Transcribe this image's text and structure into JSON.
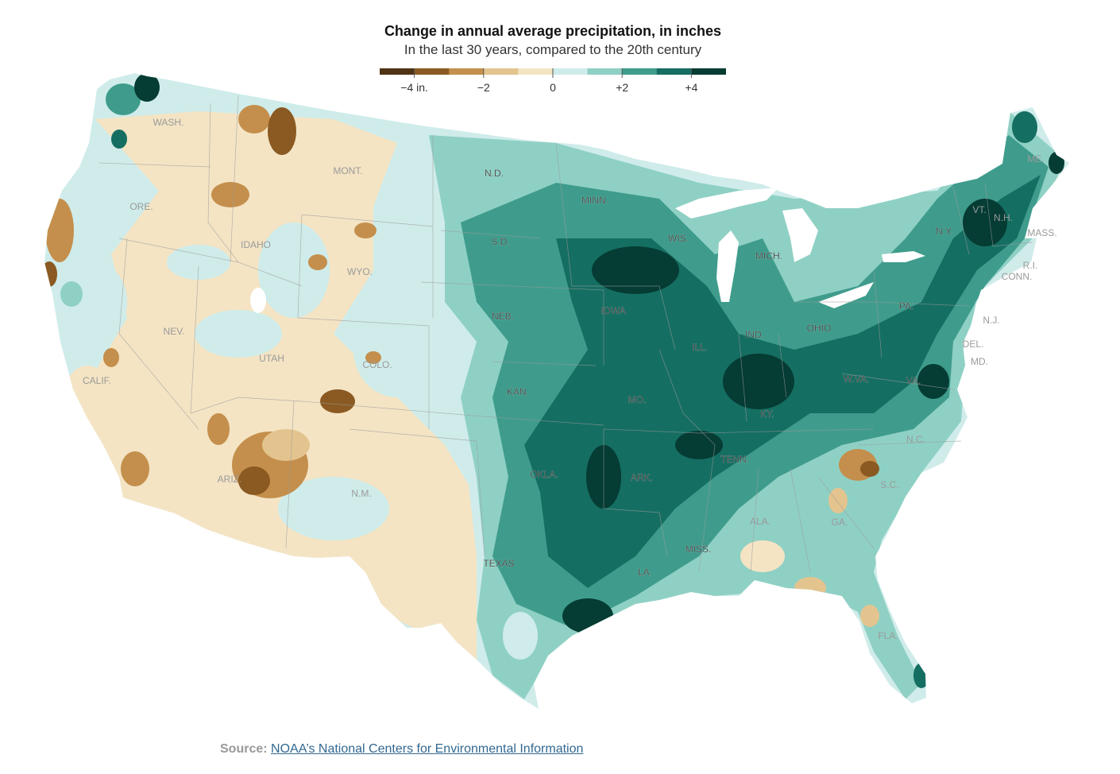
{
  "header": {
    "title": "Change in annual average precipitation, in inches",
    "subtitle": "In the last 30 years, compared to the 20th century"
  },
  "legend": {
    "colors": [
      "#4e3414",
      "#8a5a22",
      "#c48f4c",
      "#e3c48f",
      "#f4e4c4",
      "#cfecea",
      "#8fd0c4",
      "#3f9c8c",
      "#156e62",
      "#053c33"
    ],
    "ticks": [
      {
        "label": "−4 in.",
        "value": -4
      },
      {
        "label": "−2",
        "value": -2
      },
      {
        "label": "0",
        "value": 0
      },
      {
        "label": "+2",
        "value": 2
      },
      {
        "label": "+4",
        "value": 4
      }
    ],
    "range": [
      -5,
      5
    ]
  },
  "map": {
    "palette": {
      "dry_strong": "#8a5a22",
      "dry": "#c48f4c",
      "dry_light": "#e3c48f",
      "neutral_dry": "#f4e4c4",
      "neutral_wet": "#cfecea",
      "wet_light": "#8fd0c4",
      "wet": "#3f9c8c",
      "wet_strong": "#156e62",
      "wet_max": "#053c33"
    },
    "state_labels": [
      {
        "text": "WASH.",
        "dark": false
      },
      {
        "text": "ORE.",
        "dark": false
      },
      {
        "text": "IDAHO",
        "dark": false
      },
      {
        "text": "MONT.",
        "dark": false
      },
      {
        "text": "WYO.",
        "dark": false
      },
      {
        "text": "NEV.",
        "dark": false
      },
      {
        "text": "UTAH",
        "dark": false
      },
      {
        "text": "CALIF.",
        "dark": false
      },
      {
        "text": "COLO.",
        "dark": false
      },
      {
        "text": "ARIZ.",
        "dark": false
      },
      {
        "text": "N.M.",
        "dark": false
      },
      {
        "text": "N.D.",
        "dark": true
      },
      {
        "text": "S.D.",
        "dark": true
      },
      {
        "text": "NEB.",
        "dark": true
      },
      {
        "text": "KAN.",
        "dark": true
      },
      {
        "text": "OKLA.",
        "dark": true
      },
      {
        "text": "TEXAS",
        "dark": true
      },
      {
        "text": "MINN.",
        "dark": true
      },
      {
        "text": "IOWA",
        "dark": true
      },
      {
        "text": "MO.",
        "dark": true
      },
      {
        "text": "ARK.",
        "dark": true
      },
      {
        "text": "LA.",
        "dark": true
      },
      {
        "text": "WIS.",
        "dark": true
      },
      {
        "text": "ILL.",
        "dark": true
      },
      {
        "text": "MICH.",
        "dark": true
      },
      {
        "text": "IND.",
        "dark": true
      },
      {
        "text": "OHIO",
        "dark": true
      },
      {
        "text": "KY.",
        "dark": true
      },
      {
        "text": "TENN.",
        "dark": true
      },
      {
        "text": "MISS.",
        "dark": true
      },
      {
        "text": "ALA.",
        "dark": false
      },
      {
        "text": "GA.",
        "dark": false
      },
      {
        "text": "FLA.",
        "dark": false
      },
      {
        "text": "S.C.",
        "dark": false
      },
      {
        "text": "N.C.",
        "dark": false
      },
      {
        "text": "VA.",
        "dark": true
      },
      {
        "text": "W.VA.",
        "dark": true
      },
      {
        "text": "PA.",
        "dark": true
      },
      {
        "text": "N.Y.",
        "dark": true
      },
      {
        "text": "VT.",
        "dark": false
      },
      {
        "text": "N.H.",
        "dark": false
      },
      {
        "text": "ME.",
        "dark": false
      },
      {
        "text": "MASS.",
        "dark": false
      },
      {
        "text": "R.I.",
        "dark": false
      },
      {
        "text": "CONN.",
        "dark": false
      },
      {
        "text": "N.J.",
        "dark": false
      },
      {
        "text": "DEL.",
        "dark": false
      },
      {
        "text": "MD.",
        "dark": false
      }
    ]
  },
  "source": {
    "label": "Source:",
    "link_text": "NOAA’s National Centers for Environmental Information"
  }
}
